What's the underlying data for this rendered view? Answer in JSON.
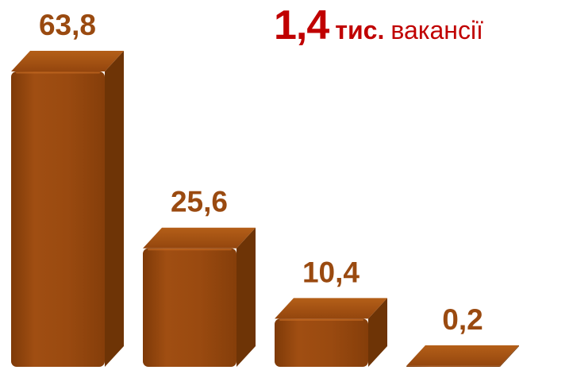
{
  "headline": {
    "value": "1,4",
    "unit": "тис.",
    "label": "вакансії"
  },
  "colors": {
    "bar_front": "#9a4a10",
    "bar_side": "#6e3406",
    "bar_top": "#a85614",
    "label": "#9a4a10",
    "headline": "#c00000"
  },
  "chart_data": {
    "type": "bar",
    "style": "3d",
    "categories": [
      "",
      "",
      "",
      ""
    ],
    "values": [
      63.8,
      25.6,
      10.4,
      0.2
    ],
    "labels": [
      "63,8",
      "25,6",
      "10,4",
      "0,2"
    ],
    "ylim": [
      0,
      63.8
    ],
    "grid": false,
    "legend": "none"
  }
}
